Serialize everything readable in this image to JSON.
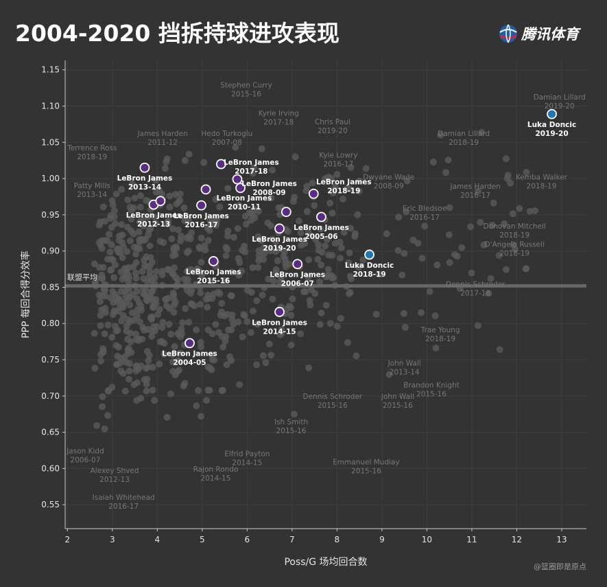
{
  "title": "2004-2020 挡拆持球进攻表现",
  "brand": "腾讯体育",
  "credit": "@篮圈即是原点",
  "colors": {
    "background": "#333333",
    "background_points": "#5a5a5a",
    "lebron": "#5b2c83",
    "luka": "#1f77b4",
    "highlight_text": "#ffffff",
    "muted_text": "#777777",
    "average_line": "#666666"
  },
  "chart_data": {
    "type": "scatter",
    "xlabel": "Poss/G 场均回合数",
    "ylabel": "PPP 每回合得分效率",
    "xlim": [
      1.95,
      13.55
    ],
    "ylim": [
      0.517,
      1.163
    ],
    "xticks": [
      2,
      3,
      4,
      5,
      6,
      7,
      8,
      9,
      10,
      11,
      12,
      13
    ],
    "yticks": [
      0.55,
      0.6,
      0.65,
      0.7,
      0.75,
      0.8,
      0.85,
      0.9,
      0.95,
      1.0,
      1.05,
      1.1,
      1.15
    ],
    "grid": true,
    "league_average": {
      "label": "联盟平均",
      "value": 0.852
    },
    "highlighted": [
      {
        "group": "lebron",
        "name": "LeBron James",
        "season": "2004-05",
        "x": 4.72,
        "y": 0.773,
        "label_pos": "below"
      },
      {
        "group": "lebron",
        "name": "LeBron James",
        "season": "2005-06",
        "x": 7.65,
        "y": 0.947,
        "label_pos": "below"
      },
      {
        "group": "lebron",
        "name": "LeBron James",
        "season": "2006-07",
        "x": 7.12,
        "y": 0.882,
        "label_pos": "below"
      },
      {
        "group": "lebron",
        "name": "LeBron James",
        "season": "2008-09",
        "x": 5.85,
        "y": 0.987,
        "label_pos": "below-right"
      },
      {
        "group": "lebron",
        "name": "LeBron James",
        "season": "2010-11",
        "x": 5.78,
        "y": 0.999,
        "label_pos": "below-far"
      },
      {
        "group": "lebron",
        "name": "LeBron James",
        "season": "2012-13",
        "x": 3.92,
        "y": 0.964,
        "label_pos": "below"
      },
      {
        "group": "lebron",
        "name": "LeBron James",
        "season": "2013-14",
        "x": 3.72,
        "y": 1.015,
        "label_pos": "below"
      },
      {
        "group": "lebron",
        "name": "LeBron James",
        "season": "2014-15",
        "x": 6.72,
        "y": 0.816,
        "label_pos": "below"
      },
      {
        "group": "lebron",
        "name": "LeBron James",
        "season": "2015-16",
        "x": 5.25,
        "y": 0.886,
        "label_pos": "below"
      },
      {
        "group": "lebron",
        "name": "LeBron James",
        "season": "2016-17",
        "x": 4.98,
        "y": 0.963,
        "label_pos": "below"
      },
      {
        "group": "lebron",
        "name": "LeBron James",
        "season": "2017-18",
        "x": 5.42,
        "y": 1.02,
        "label_pos": "right"
      },
      {
        "group": "lebron",
        "name": "LeBron James",
        "season": "2018-19",
        "x": 7.48,
        "y": 0.979,
        "label_pos": "above-right"
      },
      {
        "group": "lebron",
        "name": "LeBron James",
        "season": "2019-20",
        "x": 6.72,
        "y": 0.931,
        "label_pos": "below"
      },
      {
        "group": "lebron",
        "name": "",
        "season": "",
        "x": 4.07,
        "y": 0.969,
        "label_pos": "none"
      },
      {
        "group": "lebron",
        "name": "",
        "season": "",
        "x": 5.08,
        "y": 0.985,
        "label_pos": "none"
      },
      {
        "group": "lebron",
        "name": "",
        "season": "",
        "x": 6.87,
        "y": 0.954,
        "label_pos": "none"
      },
      {
        "group": "luka",
        "name": "Luka Doncic",
        "season": "2018-19",
        "x": 8.72,
        "y": 0.895,
        "label_pos": "below"
      },
      {
        "group": "luka",
        "name": "Luka Doncic",
        "season": "2019-20",
        "x": 12.78,
        "y": 1.089,
        "label_pos": "below"
      }
    ],
    "annotations": [
      {
        "name": "Damian Lillard",
        "season": "2019-20",
        "x": 12.95,
        "y": 1.105
      },
      {
        "name": "Stephen Curry",
        "season": "2015-16",
        "x": 5.98,
        "y": 1.122
      },
      {
        "name": "Kyrie Irving",
        "season": "2017-18",
        "x": 6.7,
        "y": 1.083
      },
      {
        "name": "Chris Paul",
        "season": "2019-20",
        "x": 7.9,
        "y": 1.071
      },
      {
        "name": "James Harden",
        "season": "2011-12",
        "x": 4.12,
        "y": 1.055
      },
      {
        "name": "Hedo Turkoglu",
        "season": "2007-08",
        "x": 5.55,
        "y": 1.055
      },
      {
        "name": "Damian Lillard",
        "season": "2018-19",
        "x": 10.82,
        "y": 1.055
      },
      {
        "name": "Terrence Ross",
        "season": "2018-19",
        "x": 2.55,
        "y": 1.035
      },
      {
        "name": "Kyle Lowry",
        "season": "2016-17",
        "x": 8.03,
        "y": 1.025
      },
      {
        "name": "Dwyane Wade",
        "season": "2008-09",
        "x": 9.15,
        "y": 0.995
      },
      {
        "name": "Kemba Walker",
        "season": "2018-19",
        "x": 12.55,
        "y": 0.995
      },
      {
        "name": "Patty Mills",
        "season": "2013-14",
        "x": 2.55,
        "y": 0.983
      },
      {
        "name": "James Harden",
        "season": "2016-17",
        "x": 11.08,
        "y": 0.982
      },
      {
        "name": "Eric Bledsoe",
        "season": "2016-17",
        "x": 9.95,
        "y": 0.952
      },
      {
        "name": "Donovan Mitchell",
        "season": "2018-19",
        "x": 11.95,
        "y": 0.927
      },
      {
        "name": "D'Angelo Russell",
        "season": "2018-19",
        "x": 11.95,
        "y": 0.902
      },
      {
        "name": "Dennis Schroder",
        "season": "2017-18",
        "x": 11.08,
        "y": 0.847
      },
      {
        "name": "Trae Young",
        "season": "2018-19",
        "x": 10.3,
        "y": 0.784
      },
      {
        "name": "John Wall",
        "season": "2013-14",
        "x": 9.5,
        "y": 0.738
      },
      {
        "name": "Brandon Knight",
        "season": "2015-16",
        "x": 10.1,
        "y": 0.708
      },
      {
        "name": "Dennis Schroder",
        "season": "2015-16",
        "x": 7.9,
        "y": 0.692
      },
      {
        "name": "John Wall",
        "season": "2015-16",
        "x": 9.35,
        "y": 0.692
      },
      {
        "name": "Ish Smith",
        "season": "2015-16",
        "x": 6.98,
        "y": 0.657
      },
      {
        "name": "Jason Kidd",
        "season": "2006-07",
        "x": 2.4,
        "y": 0.617
      },
      {
        "name": "Elfrid Payton",
        "season": "2014-15",
        "x": 6.0,
        "y": 0.613
      },
      {
        "name": "Emmanuel Mudiay",
        "season": "2015-16",
        "x": 8.65,
        "y": 0.602
      },
      {
        "name": "Alexey Shved",
        "season": "2012-13",
        "x": 3.05,
        "y": 0.59
      },
      {
        "name": "Rajon Rondo",
        "season": "2014-15",
        "x": 5.3,
        "y": 0.592
      },
      {
        "name": "Isaiah Whitehead",
        "season": "2016-17",
        "x": 3.25,
        "y": 0.553
      }
    ]
  }
}
